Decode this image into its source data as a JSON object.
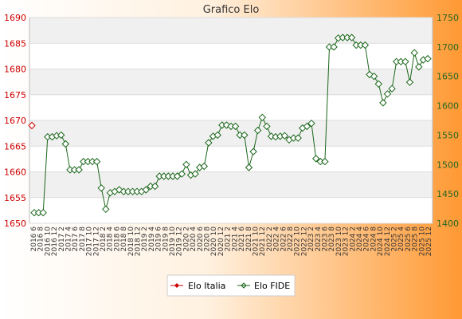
{
  "chart_data": {
    "type": "line",
    "title": "Grafico Elo",
    "y_left": {
      "ylim": [
        1650,
        1690
      ],
      "ticks": [
        1650,
        1655,
        1660,
        1665,
        1670,
        1675,
        1680,
        1685,
        1690
      ]
    },
    "y_right": {
      "ylim": [
        1400,
        1750
      ],
      "ticks": [
        1400,
        1450,
        1500,
        1550,
        1600,
        1650,
        1700,
        1750
      ]
    },
    "x_tick_labels": [
      "2016 6",
      "2016 8",
      "2016 10",
      "2016 12",
      "2017 2",
      "2017 4",
      "2017 6",
      "2017 8",
      "2017 10",
      "2017 12",
      "2018 2",
      "2018 4",
      "2018 6",
      "2018 8",
      "2018 10",
      "2018 12",
      "2019 2",
      "2019 4",
      "2019 6",
      "2019 8",
      "2019 10",
      "2019 12",
      "2020 2",
      "2020 4",
      "2020 6",
      "2020 8",
      "2020 10",
      "2020 12",
      "2021 2",
      "2021 4",
      "2021 6",
      "2021 8",
      "2021 10",
      "2021 12",
      "2022 2",
      "2022 4",
      "2022 6",
      "2022 8",
      "2022 10",
      "2022 12",
      "2023 2",
      "2023 4",
      "2023 6",
      "2023 8",
      "2023 10",
      "2023 12",
      "2024 2",
      "2024 4",
      "2024 6",
      "2024 8",
      "2024 10",
      "2024 12",
      "2025 2",
      "2025 4",
      "2025 6",
      "2025 8",
      "2025 10",
      "2025 12"
    ],
    "series": [
      {
        "name": "Elo Italia",
        "axis": "left",
        "color": "#cc0000",
        "values": [
          1669
        ]
      },
      {
        "name": "Elo FIDE",
        "axis": "right",
        "color": "#1a661a",
        "values": [
          1418,
          1418,
          1418,
          1547,
          1547,
          1549,
          1550,
          1535,
          1491,
          1491,
          1491,
          1505,
          1505,
          1505,
          1505,
          1460,
          1424,
          1452,
          1454,
          1457,
          1454,
          1454,
          1454,
          1454,
          1454,
          1457,
          1463,
          1463,
          1480,
          1480,
          1480,
          1480,
          1480,
          1484,
          1500,
          1482,
          1484,
          1495,
          1497,
          1537,
          1548,
          1550,
          1567,
          1567,
          1565,
          1565,
          1550,
          1550,
          1495,
          1522,
          1558,
          1580,
          1565,
          1548,
          1547,
          1548,
          1549,
          1542,
          1545,
          1545,
          1562,
          1565,
          1570,
          1510,
          1505,
          1505,
          1700,
          1700,
          1715,
          1716,
          1716,
          1716,
          1703,
          1703,
          1703,
          1653,
          1650,
          1637,
          1605,
          1620,
          1629,
          1675,
          1675,
          1675,
          1640,
          1690,
          1666,
          1678,
          1680
        ]
      }
    ],
    "legend": {
      "position": "bottom-center",
      "entries": [
        "Elo Italia",
        "Elo FIDE"
      ]
    },
    "grid": true,
    "background": {
      "left": "#ffffff",
      "right": "#ff9933"
    }
  }
}
